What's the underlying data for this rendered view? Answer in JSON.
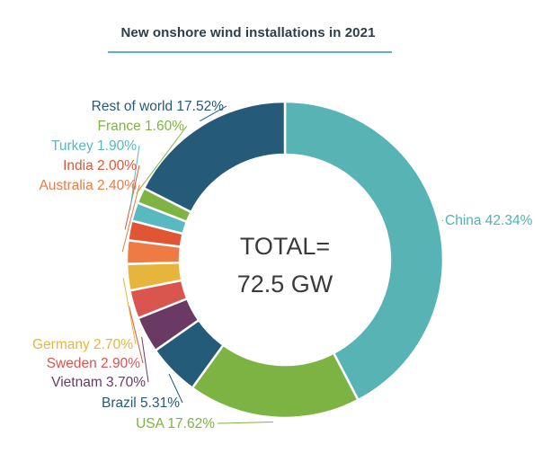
{
  "chart_data": {
    "type": "pie",
    "variant": "donut",
    "title": "New onshore wind installations in 2021",
    "center_label": [
      "TOTAL=",
      "72.5 GW"
    ],
    "slices": [
      {
        "name": "China",
        "value": 42.34,
        "label": "China 42.34%",
        "color": "#58b3b4",
        "label_color": "#4fb2b5"
      },
      {
        "name": "USA",
        "value": 17.62,
        "label": "USA 17.62%",
        "color": "#7db342",
        "label_color": "#7db342"
      },
      {
        "name": "Brazil",
        "value": 5.31,
        "label": "Brazil 5.31%",
        "color": "#245b78",
        "label_color": "#245b78"
      },
      {
        "name": "Vietnam",
        "value": 3.7,
        "label": "Vietnam 3.70%",
        "color": "#6b3a64",
        "label_color": "#6b3a64"
      },
      {
        "name": "Sweden",
        "value": 2.9,
        "label": "Sweden 2.90%",
        "color": "#d9554e",
        "label_color": "#d9554e"
      },
      {
        "name": "Germany",
        "value": 2.7,
        "label": "Germany 2.70%",
        "color": "#e8b53c",
        "label_color": "#e8b53c"
      },
      {
        "name": "Australia",
        "value": 2.4,
        "label": "Australia 2.40%",
        "color": "#ee7a44",
        "label_color": "#ee7a44"
      },
      {
        "name": "India",
        "value": 2.0,
        "label": "India 2.00%",
        "color": "#e05534",
        "label_color": "#e05534"
      },
      {
        "name": "Turkey",
        "value": 1.9,
        "label": "Turkey 1.90%",
        "color": "#58b9c0",
        "label_color": "#58b9c0"
      },
      {
        "name": "France",
        "value": 1.6,
        "label": "France 1.60%",
        "color": "#80b442",
        "label_color": "#80b442"
      },
      {
        "name": "Rest of world",
        "value": 17.52,
        "label": "Rest of world 17.52%",
        "color": "#255a78",
        "label_color": "#255a78"
      }
    ]
  }
}
